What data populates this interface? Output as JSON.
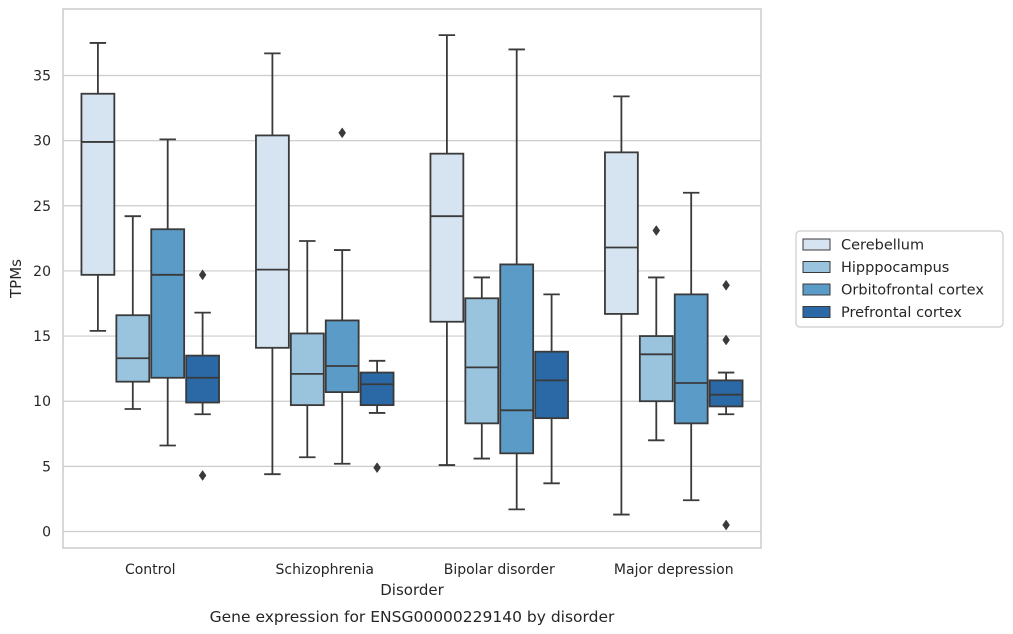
{
  "chart_data": {
    "type": "box",
    "caption": "Gene expression for ENSG00000229140 by disorder",
    "xlabel": "Disorder",
    "ylabel": "TPMs",
    "ylim": [
      -1.2,
      40
    ],
    "yticks": [
      0,
      5,
      10,
      15,
      20,
      25,
      30,
      35
    ],
    "grid": "horizontal",
    "legend_position": "right",
    "categories": [
      "Control",
      "Schizophrenia",
      "Bipolar disorder",
      "Major depression"
    ],
    "series": [
      {
        "name": "Cerebellum",
        "color": "#d6e3f0",
        "boxes": [
          {
            "whisker_low": 15.4,
            "q1": 19.7,
            "median": 29.9,
            "q3": 33.6,
            "whisker_high": 37.5,
            "outliers": []
          },
          {
            "whisker_low": 4.4,
            "q1": 14.1,
            "median": 20.1,
            "q3": 30.4,
            "whisker_high": 36.7,
            "outliers": []
          },
          {
            "whisker_low": 5.1,
            "q1": 16.1,
            "median": 24.2,
            "q3": 29.0,
            "whisker_high": 38.1,
            "outliers": []
          },
          {
            "whisker_low": 1.3,
            "q1": 16.7,
            "median": 21.8,
            "q3": 29.1,
            "whisker_high": 33.4,
            "outliers": []
          }
        ]
      },
      {
        "name": "Hipppocampus",
        "color": "#9ac3de",
        "boxes": [
          {
            "whisker_low": 9.4,
            "q1": 11.5,
            "median": 13.3,
            "q3": 16.6,
            "whisker_high": 24.2,
            "outliers": []
          },
          {
            "whisker_low": 5.7,
            "q1": 9.7,
            "median": 12.1,
            "q3": 15.2,
            "whisker_high": 22.3,
            "outliers": []
          },
          {
            "whisker_low": 5.6,
            "q1": 8.3,
            "median": 12.6,
            "q3": 17.9,
            "whisker_high": 19.5,
            "outliers": []
          },
          {
            "whisker_low": 7.0,
            "q1": 10.0,
            "median": 13.6,
            "q3": 15.0,
            "whisker_high": 19.5,
            "outliers": [
              23.1
            ]
          }
        ]
      },
      {
        "name": "Orbitofrontal cortex",
        "color": "#5b9bc8",
        "boxes": [
          {
            "whisker_low": 6.6,
            "q1": 11.8,
            "median": 19.7,
            "q3": 23.2,
            "whisker_high": 30.1,
            "outliers": []
          },
          {
            "whisker_low": 5.2,
            "q1": 10.7,
            "median": 12.7,
            "q3": 16.2,
            "whisker_high": 21.6,
            "outliers": [
              30.6
            ]
          },
          {
            "whisker_low": 1.7,
            "q1": 6.0,
            "median": 9.3,
            "q3": 20.5,
            "whisker_high": 37.0,
            "outliers": []
          },
          {
            "whisker_low": 2.4,
            "q1": 8.3,
            "median": 11.4,
            "q3": 18.2,
            "whisker_high": 26.0,
            "outliers": []
          }
        ]
      },
      {
        "name": "Prefrontal cortex",
        "color": "#2a68a6",
        "boxes": [
          {
            "whisker_low": 9.0,
            "q1": 9.9,
            "median": 11.8,
            "q3": 13.5,
            "whisker_high": 16.8,
            "outliers": [
              19.7,
              4.3
            ]
          },
          {
            "whisker_low": 9.1,
            "q1": 9.7,
            "median": 11.3,
            "q3": 12.2,
            "whisker_high": 13.1,
            "outliers": [
              4.9
            ]
          },
          {
            "whisker_low": 3.7,
            "q1": 8.7,
            "median": 11.6,
            "q3": 13.8,
            "whisker_high": 18.2,
            "outliers": []
          },
          {
            "whisker_low": 9.0,
            "q1": 9.6,
            "median": 10.5,
            "q3": 11.6,
            "whisker_high": 12.2,
            "outliers": [
              18.9,
              14.7,
              0.5
            ]
          }
        ]
      }
    ]
  }
}
